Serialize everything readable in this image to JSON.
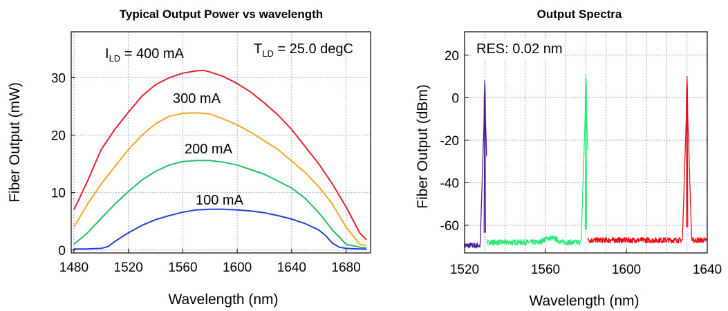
{
  "chart_data": [
    {
      "type": "line",
      "title": "Typical Output Power vs wavelength",
      "xlabel": "Wavelength (nm)",
      "ylabel": "Fiber Output (mW)",
      "xlim": [
        1478,
        1698
      ],
      "ylim": [
        -0.5,
        38
      ],
      "xticks": [
        1480,
        1520,
        1560,
        1600,
        1640,
        1680
      ],
      "yticks": [
        0,
        10,
        20,
        30
      ],
      "grid": true,
      "annotations": {
        "current_prefix": "I",
        "current_sub": "LD",
        "current_value": " = 400 mA",
        "temp_prefix": "T",
        "temp_sub": "LD",
        "temp_value": " = 25.0 degC"
      },
      "series": [
        {
          "name": "400 mA",
          "color": "#e8202a",
          "x": [
            1480,
            1490,
            1500,
            1510,
            1520,
            1530,
            1540,
            1550,
            1560,
            1570,
            1575,
            1580,
            1590,
            1600,
            1610,
            1620,
            1630,
            1640,
            1650,
            1660,
            1670,
            1680,
            1690,
            1695
          ],
          "y": [
            7.0,
            12.0,
            17.5,
            21.0,
            24.0,
            26.8,
            28.8,
            30.0,
            30.8,
            31.2,
            31.3,
            31.0,
            30.2,
            29.0,
            27.5,
            25.6,
            23.5,
            21.0,
            18.0,
            15.0,
            11.5,
            7.5,
            3.0,
            1.8
          ]
        },
        {
          "name": "300 mA",
          "color": "#f5a623",
          "x": [
            1480,
            1490,
            1500,
            1510,
            1520,
            1530,
            1540,
            1550,
            1560,
            1570,
            1580,
            1590,
            1600,
            1610,
            1620,
            1630,
            1640,
            1650,
            1660,
            1670,
            1680,
            1690,
            1695
          ],
          "y": [
            4.0,
            8.0,
            11.5,
            14.5,
            17.5,
            20.0,
            22.0,
            23.3,
            23.8,
            23.9,
            23.7,
            22.8,
            21.8,
            20.5,
            19.0,
            17.5,
            15.5,
            13.5,
            11.0,
            8.0,
            4.0,
            1.0,
            0.8
          ]
        },
        {
          "name": "200 mA",
          "color": "#1fbf6a",
          "x": [
            1480,
            1490,
            1500,
            1510,
            1520,
            1530,
            1540,
            1550,
            1560,
            1570,
            1580,
            1590,
            1600,
            1610,
            1620,
            1630,
            1640,
            1650,
            1660,
            1670,
            1680,
            1690,
            1695
          ],
          "y": [
            1.0,
            3.0,
            5.5,
            8.0,
            10.2,
            12.2,
            13.7,
            14.8,
            15.4,
            15.6,
            15.6,
            15.3,
            14.8,
            14.0,
            13.2,
            12.0,
            10.8,
            9.0,
            6.5,
            3.5,
            1.0,
            0.5,
            0.4
          ]
        },
        {
          "name": "100 mA",
          "color": "#2040d8",
          "x": [
            1480,
            1490,
            1500,
            1505,
            1510,
            1520,
            1530,
            1540,
            1550,
            1560,
            1570,
            1580,
            1590,
            1600,
            1610,
            1620,
            1630,
            1640,
            1650,
            1660,
            1665,
            1670,
            1675,
            1680,
            1690,
            1695
          ],
          "y": [
            0.2,
            0.2,
            0.3,
            0.6,
            1.5,
            3.0,
            4.3,
            5.3,
            6.0,
            6.6,
            7.0,
            7.1,
            7.1,
            7.0,
            6.8,
            6.5,
            6.0,
            5.4,
            4.6,
            3.5,
            2.5,
            1.2,
            0.5,
            0.3,
            0.2,
            0.2
          ]
        }
      ],
      "labels": [
        "400 mA",
        "300 mA",
        "200 mA",
        "100 mA"
      ]
    },
    {
      "type": "line",
      "title": "Output Spectra",
      "xlabel": "Wavelength (nm)",
      "ylabel": "Fiber Output (dBm)",
      "xlim": [
        1520,
        1640
      ],
      "ylim": [
        -73,
        31
      ],
      "xticks": [
        1520,
        1560,
        1600,
        1640
      ],
      "yticks": [
        20,
        0,
        -20,
        -40,
        -60
      ],
      "ytick_labels": [
        "20",
        "0",
        "-20",
        "-40",
        "-60"
      ],
      "grid": true,
      "annotation": "RES: 0.02 nm",
      "series": [
        {
          "name": "1530 nm",
          "color": "#4b1d8f",
          "range": [
            1520,
            1531
          ],
          "peak": 1530,
          "peak_value": 8,
          "noise_floor": -69.5
        },
        {
          "name": "1580 nm",
          "color": "#2ee87a",
          "range": [
            1531,
            1581
          ],
          "peak": 1580,
          "peak_value": 11,
          "noise_floor": -68
        },
        {
          "name": "1630 nm",
          "color": "#e8101a",
          "range": [
            1581,
            1640
          ],
          "peak": 1630,
          "peak_value": 10,
          "noise_floor": -67
        }
      ]
    }
  ]
}
